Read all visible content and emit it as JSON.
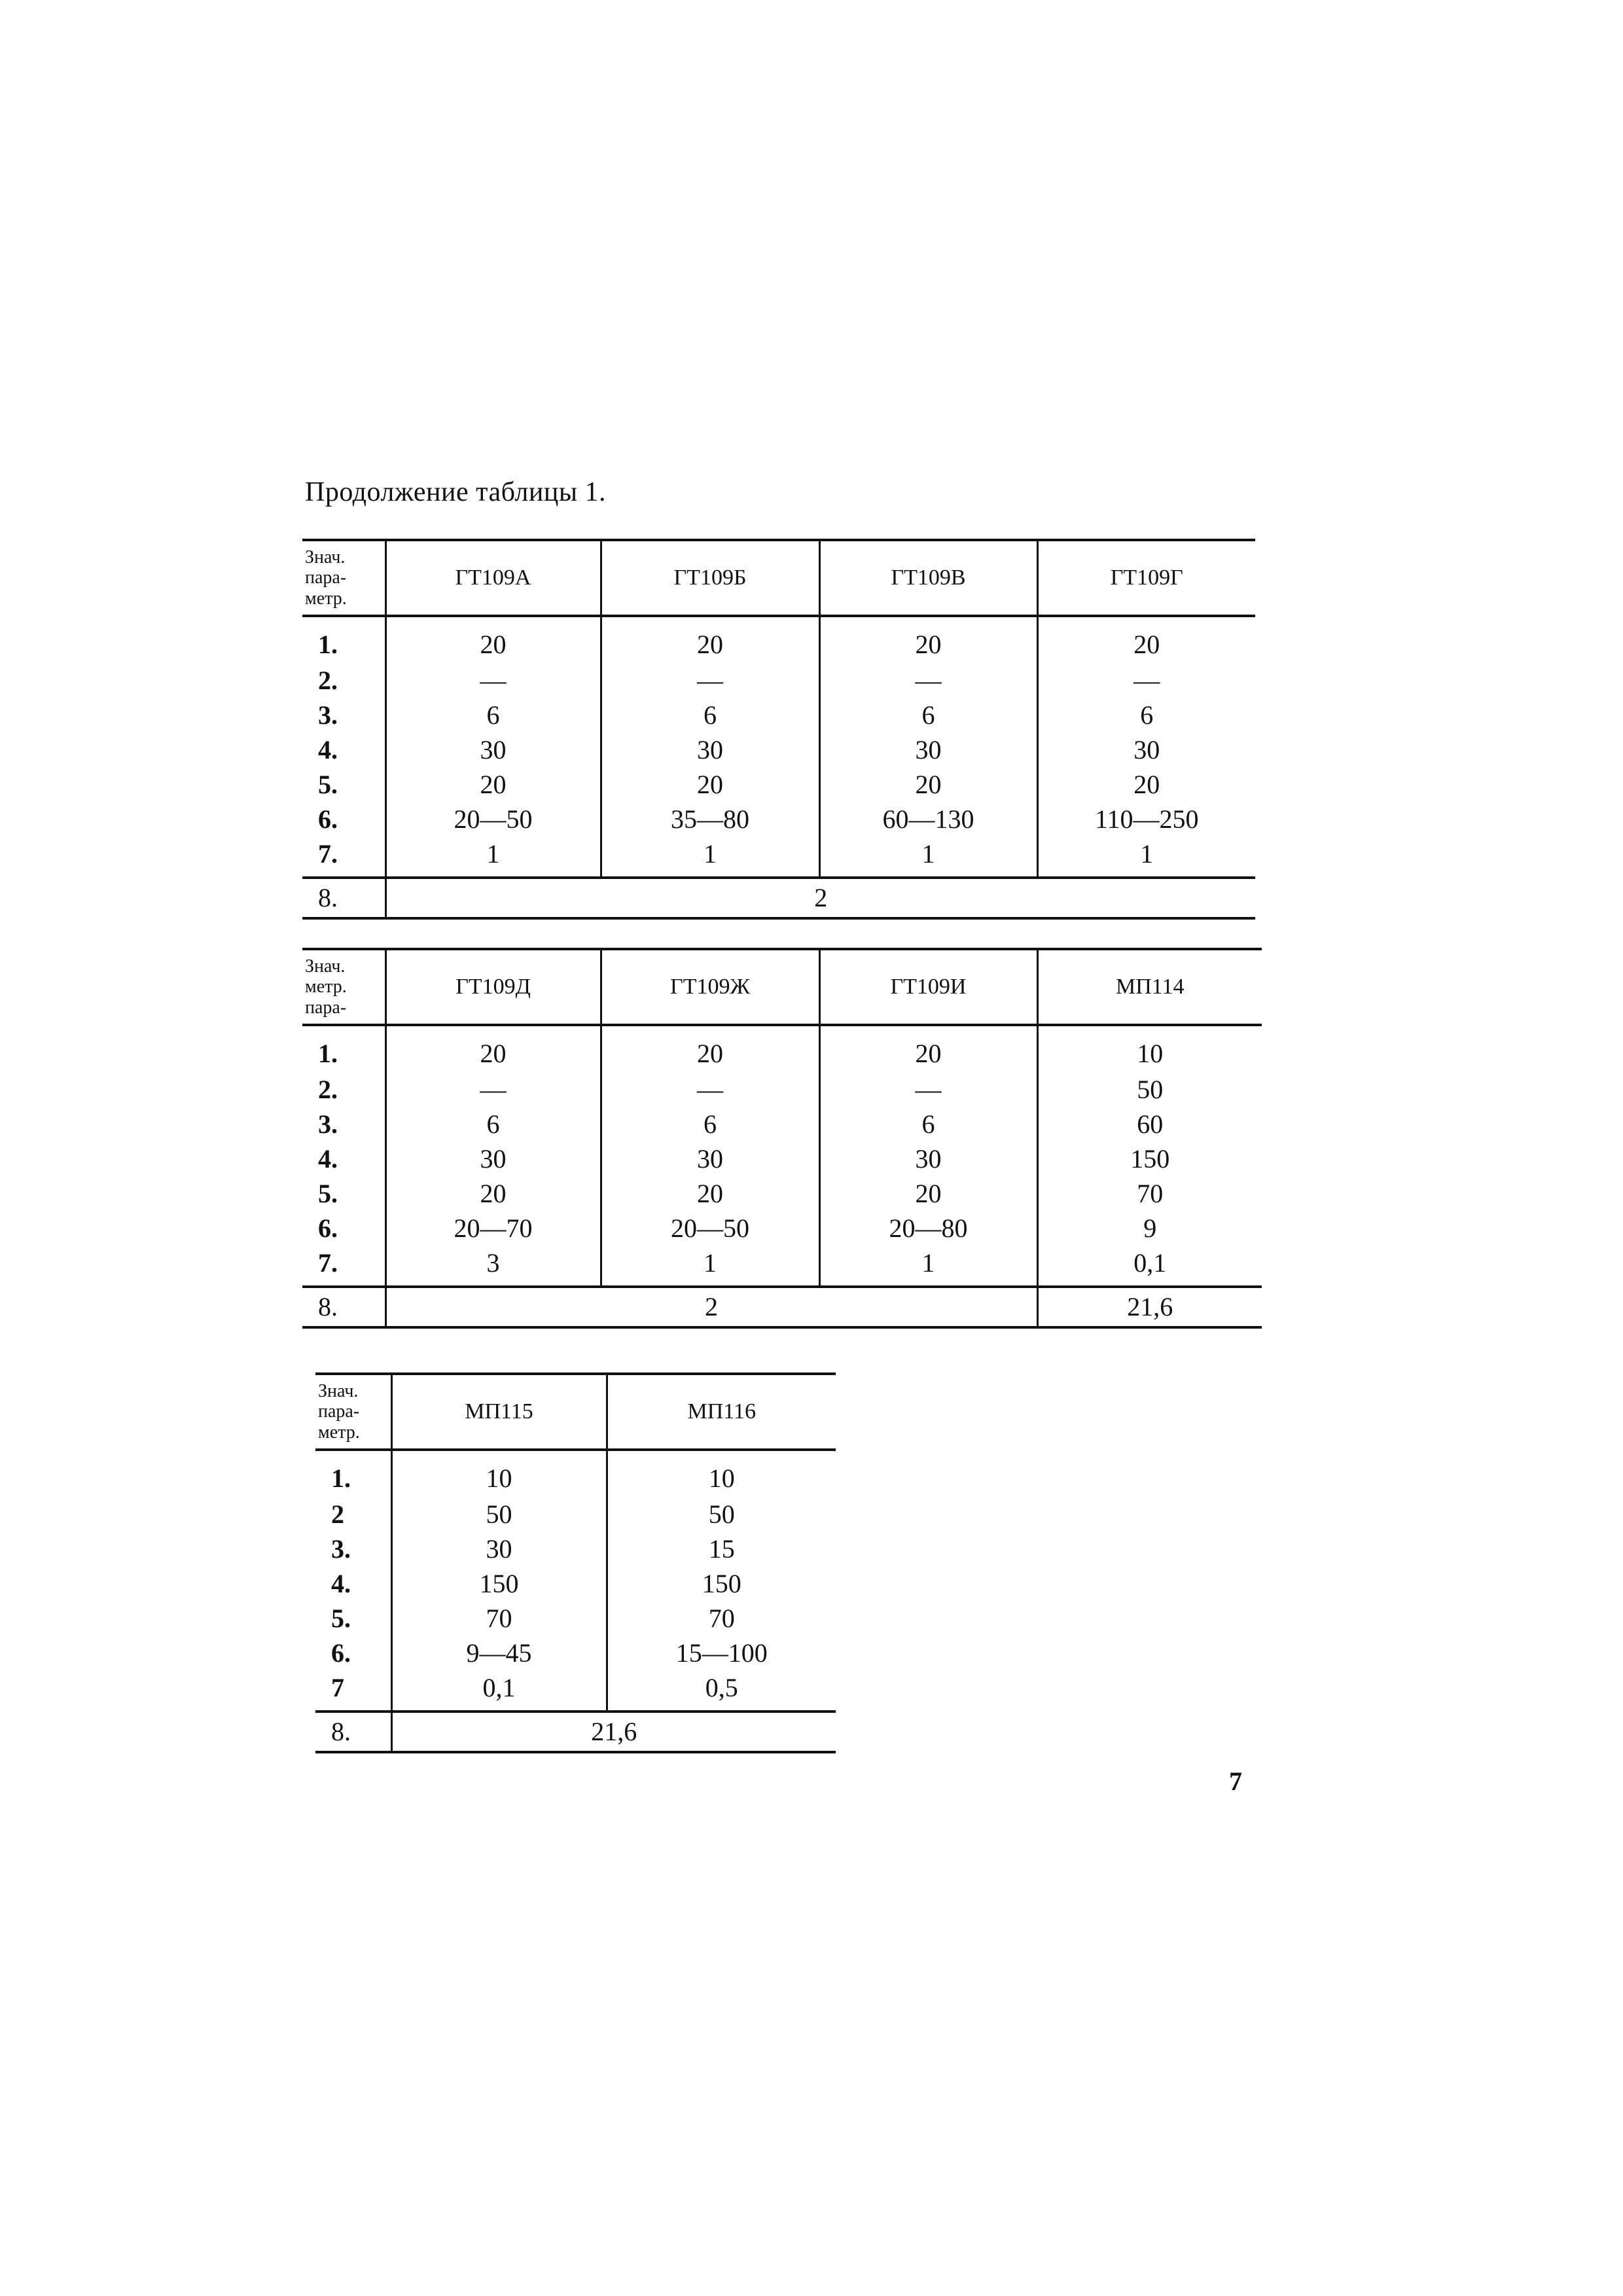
{
  "title": "Продолжение таблицы 1.",
  "page_number": "7",
  "tables": [
    {
      "stub_header": [
        "Знач.",
        "пара-",
        "метр."
      ],
      "columns": [
        "ГТ109А",
        "ГТ109Б",
        "ГТ109В",
        "ГТ109Г"
      ],
      "rows": [
        {
          "label": "1.",
          "values": [
            "20",
            "20",
            "20",
            "20"
          ]
        },
        {
          "label": "2.",
          "values": [
            "—",
            "—",
            "—",
            "—"
          ]
        },
        {
          "label": "3.",
          "values": [
            "6",
            "6",
            "6",
            "6"
          ]
        },
        {
          "label": "4.",
          "values": [
            "30",
            "30",
            "30",
            "30"
          ]
        },
        {
          "label": "5.",
          "values": [
            "20",
            "20",
            "20",
            "20"
          ]
        },
        {
          "label": "6.",
          "values": [
            "20—50",
            "35—80",
            "60—130",
            "110—250"
          ]
        },
        {
          "label": "7.",
          "values": [
            "1",
            "1",
            "1",
            "1"
          ]
        }
      ],
      "footer": {
        "label": "8.",
        "cells": [
          {
            "value": "2",
            "span": 4
          }
        ]
      }
    },
    {
      "stub_header": [
        "Знач.",
        "метр.",
        "пара-"
      ],
      "columns": [
        "ГТ109Д",
        "ГТ109Ж",
        "ГТ109И",
        "МП114"
      ],
      "rows": [
        {
          "label": "1.",
          "values": [
            "20",
            "20",
            "20",
            "10"
          ]
        },
        {
          "label": "2.",
          "values": [
            "—",
            "—",
            "—",
            "50"
          ]
        },
        {
          "label": "3.",
          "values": [
            "6",
            "6",
            "6",
            "60"
          ]
        },
        {
          "label": "4.",
          "values": [
            "30",
            "30",
            "30",
            "150"
          ]
        },
        {
          "label": "5.",
          "values": [
            "20",
            "20",
            "20",
            "70"
          ]
        },
        {
          "label": "6.",
          "values": [
            "20—70",
            "20—50",
            "20—80",
            "9"
          ]
        },
        {
          "label": "7.",
          "values": [
            "3",
            "1",
            "1",
            "0,1"
          ]
        }
      ],
      "footer": {
        "label": "8.",
        "cells": [
          {
            "value": "2",
            "span": 3
          },
          {
            "value": "21,6",
            "span": 1
          }
        ]
      }
    },
    {
      "stub_header": [
        "Знач.",
        "пара-",
        "метр."
      ],
      "columns": [
        "МП115",
        "МП116"
      ],
      "rows": [
        {
          "label": "1.",
          "values": [
            "10",
            "10"
          ]
        },
        {
          "label": "2",
          "values": [
            "50",
            "50"
          ]
        },
        {
          "label": "3.",
          "values": [
            "30",
            "15"
          ]
        },
        {
          "label": "4.",
          "values": [
            "150",
            "150"
          ]
        },
        {
          "label": "5.",
          "values": [
            "70",
            "70"
          ]
        },
        {
          "label": "6.",
          "values": [
            "9—45",
            "15—100"
          ]
        },
        {
          "label": "7",
          "values": [
            "0,1",
            "0,5"
          ]
        }
      ],
      "footer": {
        "label": "8.",
        "cells": [
          {
            "value": "21,6",
            "span": 2
          }
        ]
      }
    }
  ]
}
